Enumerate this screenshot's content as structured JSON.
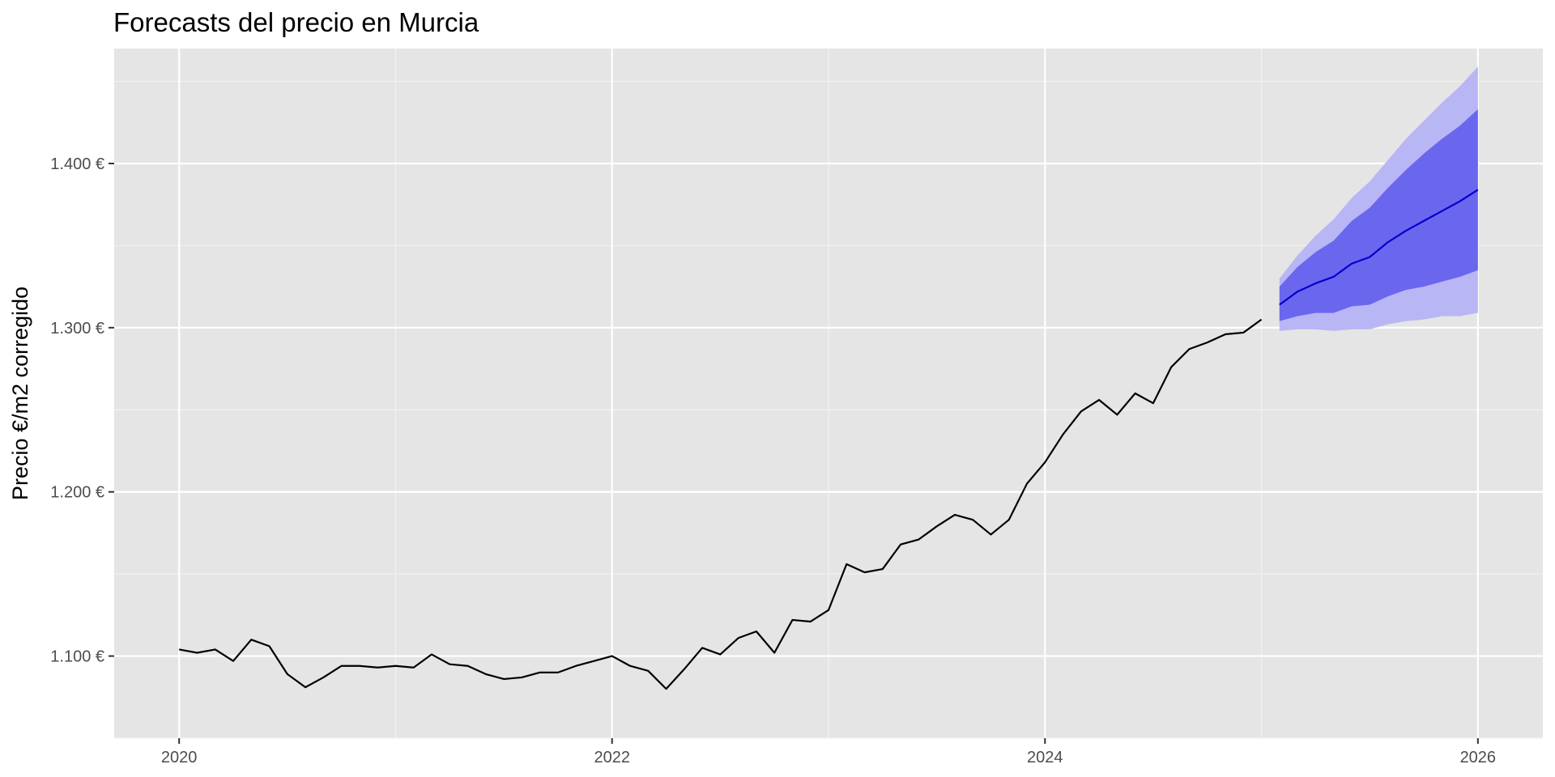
{
  "chart_data": {
    "type": "line",
    "title": "Forecasts del precio en Murcia",
    "xlabel": "",
    "ylabel": "Precio €/m2 corregido",
    "x_ticks": [
      {
        "value": 2020,
        "label": "2020"
      },
      {
        "value": 2022,
        "label": "2022"
      },
      {
        "value": 2024,
        "label": "2024"
      },
      {
        "value": 2026,
        "label": "2026"
      }
    ],
    "y_ticks": [
      {
        "value": 1100,
        "label": "1.100 €"
      },
      {
        "value": 1200,
        "label": "1.200 €"
      },
      {
        "value": 1300,
        "label": "1.300 €"
      },
      {
        "value": 1400,
        "label": "1.400 €"
      }
    ],
    "xlim": [
      2019.7,
      2026.3
    ],
    "ylim": [
      1050,
      1470
    ],
    "grid": true,
    "colors": {
      "panel_background": "#e5e5e5",
      "grid_major": "#ffffff",
      "grid_minor": "#f2f2f2",
      "history_line": "#000000",
      "forecast_line": "#0000cc",
      "interval_80": "#6b66ee",
      "interval_95": "#b8b6f4",
      "tick_mark": "#333333"
    },
    "series": [
      {
        "type": "line",
        "start": "2020-01",
        "frequency": "monthly",
        "values": [
          1104,
          1102,
          1104,
          1097,
          1110,
          1106,
          1089,
          1081,
          1087,
          1094,
          1094,
          1093,
          1094,
          1093,
          1101,
          1095,
          1094,
          1089,
          1086,
          1087,
          1090,
          1090,
          1094,
          1097,
          1100,
          1094,
          1091,
          1080,
          1092,
          1105,
          1101,
          1111,
          1115,
          1102,
          1122,
          1121,
          1128,
          1156,
          1151,
          1153,
          1168,
          1171,
          1179,
          1186,
          1183,
          1174,
          1183,
          1205,
          1218,
          1235,
          1249,
          1256,
          1247,
          1260,
          1254,
          1276,
          1287,
          1291,
          1296,
          1297,
          1305
        ]
      },
      {
        "type": "forecast",
        "start": "2025-02",
        "frequency": "monthly",
        "mean": [
          1314,
          1322,
          1327,
          1331,
          1339,
          1343,
          1352,
          1359,
          1365,
          1371,
          1377,
          1384
        ],
        "lo80": [
          1304,
          1307,
          1309,
          1309,
          1313,
          1314,
          1319,
          1323,
          1325,
          1328,
          1331,
          1335
        ],
        "hi80": [
          1325,
          1337,
          1346,
          1353,
          1365,
          1373,
          1385,
          1396,
          1406,
          1415,
          1423,
          1433
        ],
        "lo95": [
          1298,
          1299,
          1299,
          1298,
          1299,
          1299,
          1302,
          1304,
          1305,
          1307,
          1307,
          1309
        ],
        "hi95": [
          1330,
          1344,
          1356,
          1366,
          1379,
          1389,
          1402,
          1415,
          1426,
          1437,
          1447,
          1459
        ]
      }
    ]
  }
}
